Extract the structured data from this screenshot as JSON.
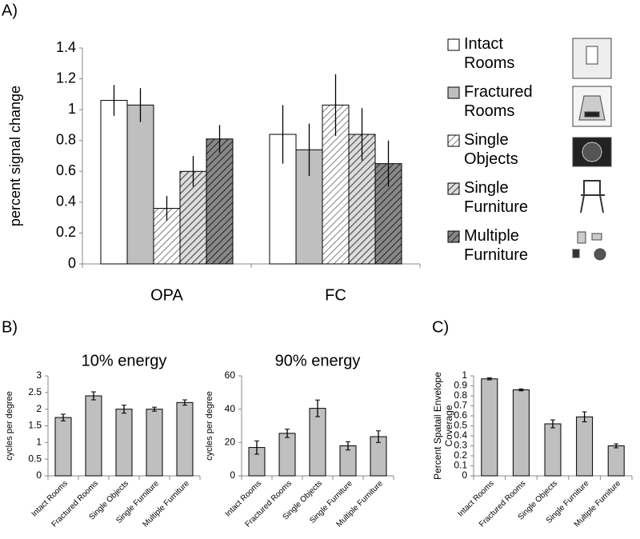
{
  "panel_labels": [
    "A)",
    "B)",
    "C)"
  ],
  "chart_data": [
    {
      "type": "bar",
      "ylabel": "percent signal change",
      "categories": [
        "OPA",
        "FC"
      ],
      "series": [
        {
          "name": "Intact Rooms",
          "color": "#ffffff",
          "values": [
            1.06,
            0.84
          ],
          "errors": [
            0.1,
            0.19
          ]
        },
        {
          "name": "Fractured Rooms",
          "color": "#bfbfbf",
          "values": [
            1.03,
            0.74
          ],
          "errors": [
            0.11,
            0.17
          ]
        },
        {
          "name": "Single Objects",
          "color": "#ffffff",
          "pattern": "light-hatch",
          "values": [
            0.36,
            1.03
          ],
          "errors": [
            0.08,
            0.2
          ]
        },
        {
          "name": "Single Furniture",
          "color": "#bfbfbf",
          "pattern": "medium-hatch",
          "values": [
            0.6,
            0.84
          ],
          "errors": [
            0.1,
            0.17
          ]
        },
        {
          "name": "Multiple Furniture",
          "color": "#7f7f7f",
          "pattern": "dark-hatch",
          "values": [
            0.81,
            0.65
          ],
          "errors": [
            0.09,
            0.15
          ]
        }
      ],
      "ylim": [
        0,
        1.4
      ],
      "yticks": [
        0,
        0.2,
        0.4,
        0.6,
        0.8,
        1,
        1.2,
        1.4
      ],
      "legend": "right"
    },
    {
      "type": "bar",
      "title": "10% energy",
      "ylabel": "cycles per degree",
      "categories": [
        "Intact Rooms",
        "Fractured Rooms",
        "Single Objects",
        "Single Furniture",
        "Multiple Furniture"
      ],
      "values": [
        1.75,
        2.4,
        2.0,
        2.0,
        2.2
      ],
      "errors": [
        0.1,
        0.12,
        0.12,
        0.06,
        0.08
      ],
      "color": "#bfbfbf",
      "ylim": [
        0,
        3
      ],
      "yticks": [
        0,
        0.5,
        1,
        1.5,
        2,
        2.5,
        3
      ]
    },
    {
      "type": "bar",
      "title": "90% energy",
      "ylabel": "cycles per degree",
      "categories": [
        "Intact Rooms",
        "Fractured Rooms",
        "Single Objects",
        "Single Furniture",
        "Multiple Furniture"
      ],
      "values": [
        17,
        25.5,
        40.5,
        18,
        23.5
      ],
      "errors": [
        4,
        2.5,
        5,
        2.5,
        3.5
      ],
      "color": "#bfbfbf",
      "ylim": [
        0,
        60
      ],
      "yticks": [
        0,
        20,
        40,
        60
      ]
    },
    {
      "type": "bar",
      "ylabel": "Percent Spatail Envelope Coverage",
      "categories": [
        "Intact Rooms",
        "Fractured Rooms",
        "Single Objects",
        "Single Furniture",
        "Multiple Furniture"
      ],
      "values": [
        0.97,
        0.86,
        0.52,
        0.59,
        0.3
      ],
      "errors": [
        0.01,
        0.01,
        0.04,
        0.05,
        0.02
      ],
      "color": "#bfbfbf",
      "ylim": [
        0,
        1
      ],
      "yticks": [
        0,
        0.1,
        0.2,
        0.3,
        0.4,
        0.5,
        0.6,
        0.7,
        0.8,
        0.9,
        1
      ]
    }
  ]
}
